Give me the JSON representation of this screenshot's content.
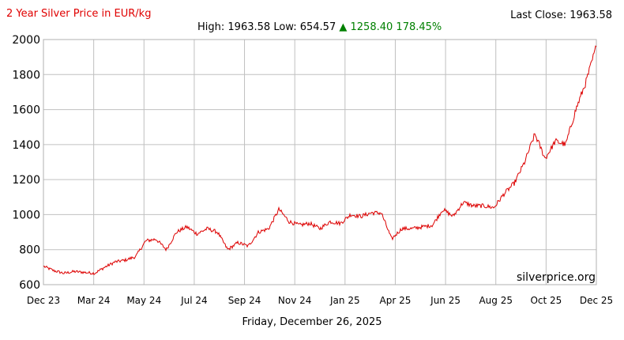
{
  "header": {
    "title": "2 Year Silver Price in EUR/kg",
    "last_close_label": "Last Close:",
    "last_close": "1963.58",
    "high_label": "High:",
    "high": "1963.58",
    "low_label": "Low:",
    "low": "654.57",
    "change_arrow": "▲",
    "change": "1258.40",
    "change_pct": "178.45%"
  },
  "brand": "silverprice.org",
  "footer_date": "Friday, December 26, 2025",
  "colors": {
    "line": "#dd0000",
    "title": "#e00000",
    "change": "#008000",
    "grid": "#c0c0c0"
  },
  "chart_data": {
    "type": "line",
    "title": "2 Year Silver Price in EUR/kg",
    "xlabel": "",
    "ylabel": "",
    "ylim": [
      600,
      2000
    ],
    "yticks": [
      "600",
      "800",
      "1000",
      "1200",
      "1400",
      "1600",
      "1800",
      "2000"
    ],
    "xticks": [
      "Dec 23",
      "Mar 24",
      "May 24",
      "Jul 24",
      "Sep 24",
      "Nov 24",
      "Jan 25",
      "Apr 25",
      "Jun 25",
      "Aug 25",
      "Oct 25",
      "Dec 25"
    ],
    "grid": true,
    "series": [
      {
        "x": [
          "Dec 23",
          "Jan 24",
          "Jan 24",
          "Feb 24",
          "Feb 24",
          "Mar 24",
          "Mar 24",
          "Apr 24",
          "Apr 24",
          "Apr 24",
          "May 24",
          "May 24",
          "May 24",
          "Jun 24",
          "Jun 24",
          "Jul 24",
          "Jul 24",
          "Aug 24",
          "Aug 24",
          "Sep 24",
          "Sep 24",
          "Oct 24",
          "Oct 24",
          "Oct 24",
          "Nov 24",
          "Nov 24",
          "Dec 24",
          "Dec 24",
          "Jan 25",
          "Jan 25",
          "Feb 25",
          "Feb 25",
          "Mar 25",
          "Mar 25",
          "Apr 25",
          "Apr 25",
          "Apr 25",
          "May 25",
          "May 25",
          "Jun 25",
          "Jun 25",
          "Jul 25",
          "Jul 25",
          "Aug 25",
          "Aug 25",
          "Sep 25",
          "Sep 25",
          "Oct 25",
          "Oct 25",
          "Oct 25",
          "Nov 25",
          "Nov 25",
          "Dec 25",
          "Dec 25",
          "Dec 25"
        ],
        "values": [
          705,
          680,
          665,
          675,
          670,
          665,
          700,
          730,
          740,
          760,
          850,
          860,
          800,
          900,
          930,
          890,
          920,
          900,
          800,
          840,
          820,
          900,
          920,
          1030,
          960,
          940,
          950,
          920,
          960,
          950,
          1000,
          990,
          1010,
          1010,
          860,
          920,
          920,
          930,
          940,
          1030,
          990,
          1070,
          1050,
          1050,
          1040,
          1120,
          1180,
          1300,
          1460,
          1320,
          1420,
          1400,
          1600,
          1760,
          1960
        ]
      }
    ]
  }
}
